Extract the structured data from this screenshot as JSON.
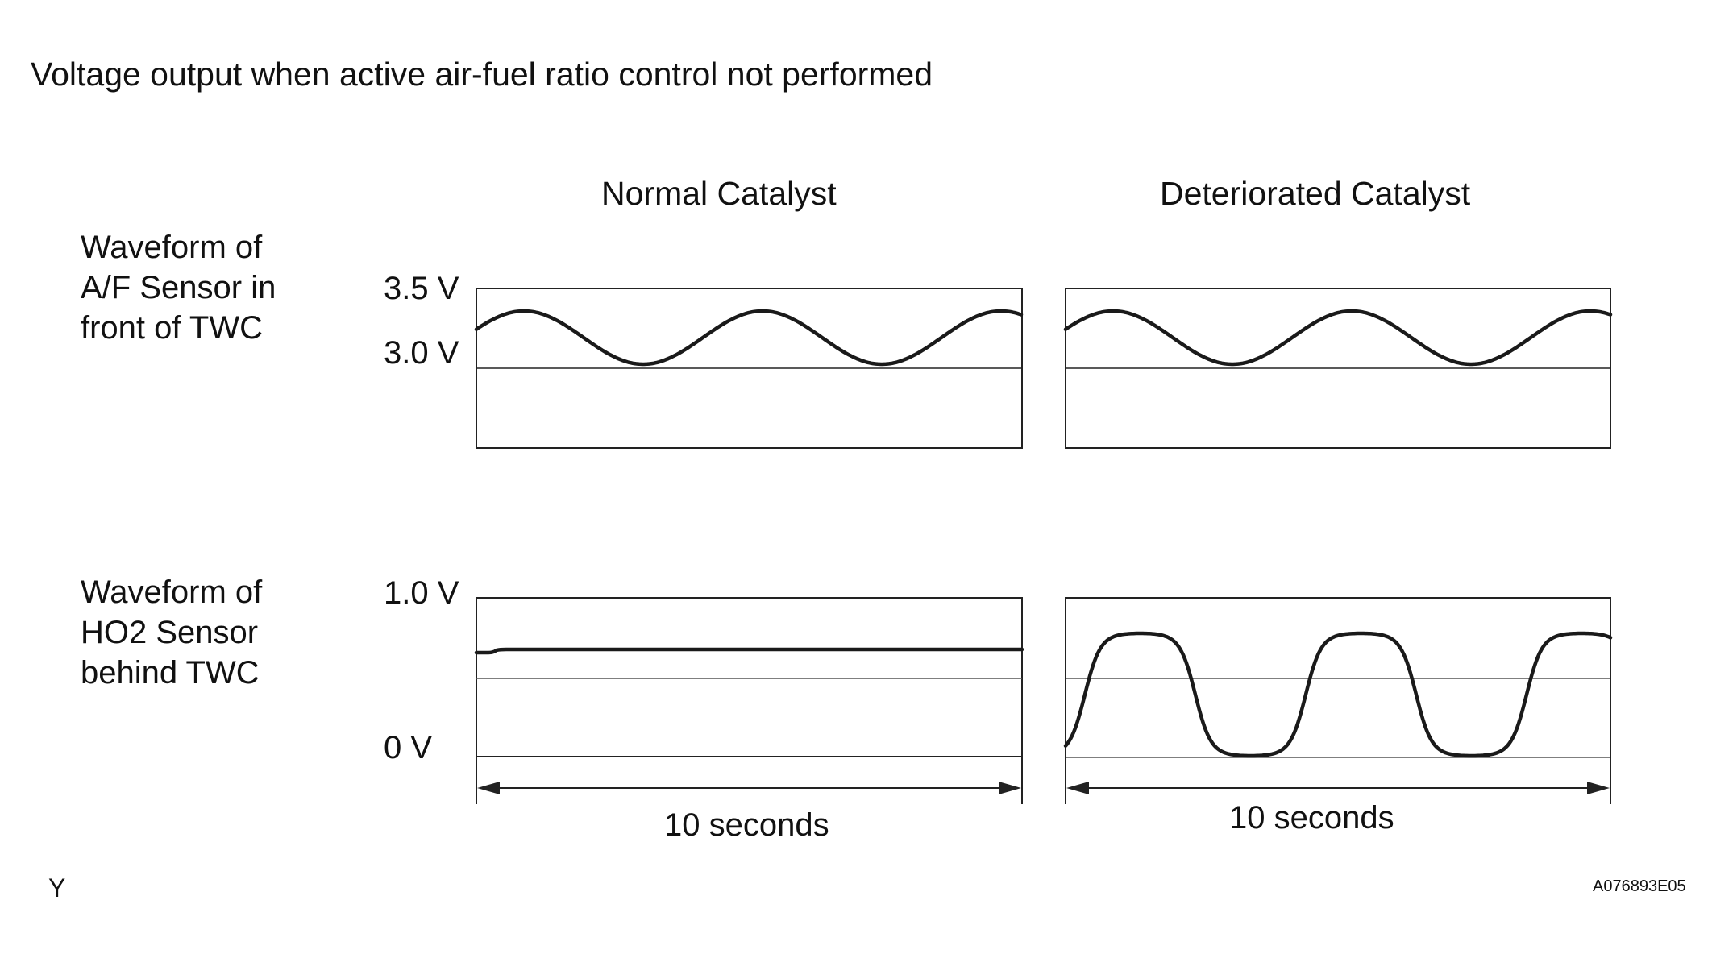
{
  "title": "Voltage output when active air-fuel ratio control not performed",
  "columns": {
    "normal": "Normal Catalyst",
    "deteriorated": "Deteriorated Catalyst"
  },
  "rows": {
    "af_sensor": {
      "label": "Waveform of\nA/F Sensor in\nfront of TWC",
      "upper_voltage": "3.5 V",
      "ref_voltage": "3.0 V"
    },
    "ho2_sensor": {
      "label": "Waveform of\nHO2 Sensor\nbehind TWC",
      "upper_voltage": "1.0 V",
      "zero_voltage": "0 V"
    }
  },
  "duration_label": "10 seconds",
  "corner_letter": "Y",
  "figure_code": "A076893E05"
}
